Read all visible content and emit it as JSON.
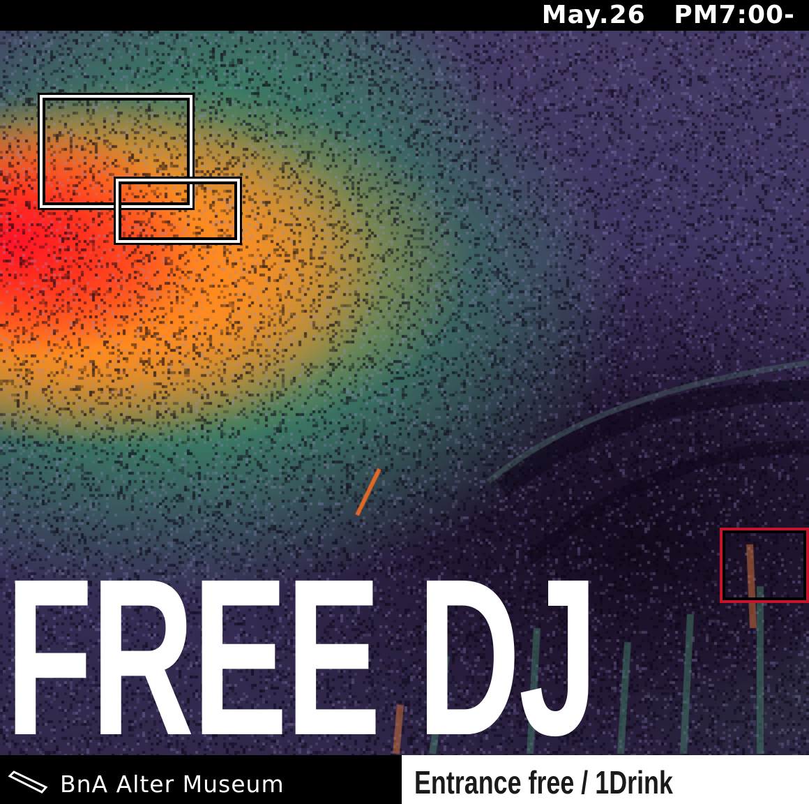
{
  "event": {
    "date_time": "May.26   PM7:00-",
    "headline": "FREE DJ",
    "venue": "BnA Alter Museum",
    "entry": "Entrance free / 1Drink"
  },
  "icons": {
    "venue": "tilted-rectangle-icon"
  },
  "colors": {
    "bar_black": "#000000",
    "text_white": "#ffffff",
    "frame_red": "#c4142c",
    "hot_red": "#ff1426",
    "warm_orange": "#ff8a1f",
    "mid_green": "#3e8a66",
    "cool_purple": "#463a66"
  }
}
